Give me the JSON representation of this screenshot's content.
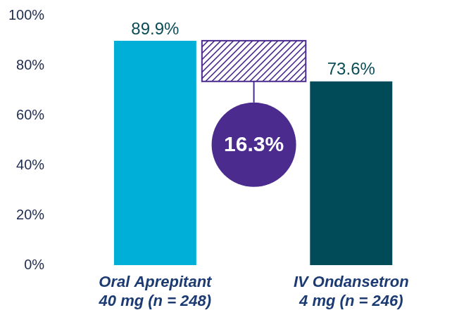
{
  "chart_data": {
    "type": "bar",
    "categories": [
      [
        "Oral Aprepitant",
        "40 mg (n = 248)"
      ],
      [
        "IV Ondansetron",
        "4 mg (n = 246)"
      ]
    ],
    "values": [
      89.9,
      73.6
    ],
    "value_labels": [
      "89.9%",
      "73.6%"
    ],
    "colors": [
      "#00afd7",
      "#014a58"
    ],
    "ylim": [
      0,
      100
    ],
    "yticks": [
      {
        "value": 0,
        "label": "0%"
      },
      {
        "value": 20,
        "label": "20%"
      },
      {
        "value": 40,
        "label": "40%"
      },
      {
        "value": 60,
        "label": "60%"
      },
      {
        "value": 80,
        "label": "80%"
      },
      {
        "value": 100,
        "label": "100%"
      }
    ],
    "grid": false,
    "data_labels": true,
    "annotation": {
      "value": 16.3,
      "label": "16.3%"
    }
  }
}
